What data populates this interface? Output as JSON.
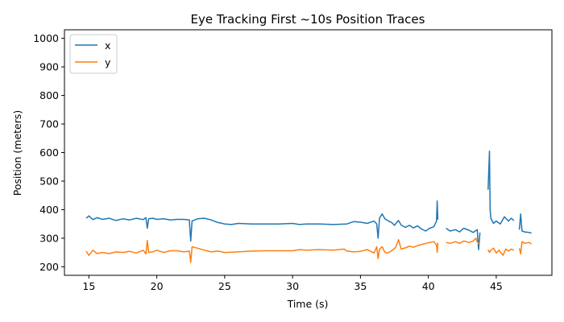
{
  "chart_data": {
    "type": "line",
    "title": "Eye Tracking First ~10s Position Traces",
    "xlabel": "Time (s)",
    "ylabel": "Position (meters)",
    "xlim": [
      13.2,
      49.1
    ],
    "ylim": [
      170,
      1030
    ],
    "xticks": [
      15,
      20,
      25,
      30,
      35,
      40,
      45
    ],
    "yticks": [
      200,
      300,
      400,
      500,
      600,
      700,
      800,
      900,
      1000
    ],
    "grid": false,
    "legend": "top-left",
    "series": [
      {
        "name": "x",
        "color": "#1f77b4",
        "points": [
          [
            14.8,
            370
          ],
          [
            15.0,
            378
          ],
          [
            15.3,
            365
          ],
          [
            15.6,
            372
          ],
          [
            16.0,
            366
          ],
          [
            16.5,
            370
          ],
          [
            17.0,
            362
          ],
          [
            17.5,
            368
          ],
          [
            18.0,
            364
          ],
          [
            18.5,
            370
          ],
          [
            19.0,
            365
          ],
          [
            19.2,
            372
          ],
          [
            19.3,
            335
          ],
          [
            19.4,
            368
          ],
          [
            19.7,
            370
          ],
          [
            20.0,
            366
          ],
          [
            20.5,
            368
          ],
          [
            21.0,
            364
          ],
          [
            21.5,
            366
          ],
          [
            22.0,
            366
          ],
          [
            22.4,
            364
          ],
          [
            22.5,
            290
          ],
          [
            22.6,
            360
          ],
          [
            23.0,
            368
          ],
          [
            23.5,
            370
          ],
          [
            24.0,
            364
          ],
          [
            24.5,
            355
          ],
          [
            25.0,
            350
          ],
          [
            25.5,
            348
          ],
          [
            26.0,
            352
          ],
          [
            27.0,
            350
          ],
          [
            28.0,
            350
          ],
          [
            29.0,
            350
          ],
          [
            30.0,
            352
          ],
          [
            30.5,
            348
          ],
          [
            31.0,
            350
          ],
          [
            32.0,
            350
          ],
          [
            33.0,
            348
          ],
          [
            34.0,
            350
          ],
          [
            34.5,
            358
          ],
          [
            35.0,
            356
          ],
          [
            35.5,
            352
          ],
          [
            36.0,
            360
          ],
          [
            36.2,
            350
          ],
          [
            36.3,
            300
          ],
          [
            36.4,
            370
          ],
          [
            36.6,
            385
          ],
          [
            36.8,
            368
          ],
          [
            37.0,
            362
          ],
          [
            37.3,
            355
          ],
          [
            37.5,
            345
          ],
          [
            37.8,
            362
          ],
          [
            38.0,
            346
          ],
          [
            38.3,
            338
          ],
          [
            38.6,
            345
          ],
          [
            38.9,
            336
          ],
          [
            39.2,
            343
          ],
          [
            39.5,
            332
          ],
          [
            39.8,
            325
          ],
          [
            40.1,
            335
          ],
          [
            40.4,
            340
          ],
          [
            40.6,
            360
          ],
          [
            40.65,
            430
          ],
          [
            40.7,
            365
          ]
        ]
      },
      {
        "name": "x",
        "color": "#1f77b4",
        "points": [
          [
            41.3,
            335
          ],
          [
            41.6,
            325
          ],
          [
            42.0,
            330
          ],
          [
            42.3,
            322
          ],
          [
            42.6,
            335
          ],
          [
            43.0,
            328
          ],
          [
            43.3,
            320
          ],
          [
            43.6,
            330
          ],
          [
            43.7,
            260
          ],
          [
            43.8,
            320
          ]
        ]
      },
      {
        "name": "x",
        "color": "#1f77b4",
        "points": [
          [
            44.4,
            470
          ],
          [
            44.5,
            605
          ],
          [
            44.55,
            400
          ],
          [
            44.6,
            370
          ],
          [
            44.8,
            352
          ],
          [
            45.0,
            360
          ],
          [
            45.3,
            350
          ],
          [
            45.6,
            375
          ],
          [
            45.9,
            360
          ],
          [
            46.1,
            370
          ],
          [
            46.3,
            362
          ]
        ]
      },
      {
        "name": "x",
        "color": "#1f77b4",
        "points": [
          [
            46.7,
            330
          ],
          [
            46.8,
            385
          ],
          [
            46.9,
            325
          ],
          [
            47.1,
            322
          ],
          [
            47.4,
            320
          ],
          [
            47.6,
            318
          ]
        ]
      },
      {
        "name": "y",
        "color": "#ff7f0e",
        "points": [
          [
            14.8,
            255
          ],
          [
            15.0,
            240
          ],
          [
            15.3,
            258
          ],
          [
            15.6,
            246
          ],
          [
            16.0,
            250
          ],
          [
            16.5,
            246
          ],
          [
            17.0,
            252
          ],
          [
            17.5,
            250
          ],
          [
            18.0,
            254
          ],
          [
            18.5,
            248
          ],
          [
            19.0,
            258
          ],
          [
            19.2,
            245
          ],
          [
            19.3,
            292
          ],
          [
            19.4,
            250
          ],
          [
            19.7,
            252
          ],
          [
            20.0,
            258
          ],
          [
            20.5,
            250
          ],
          [
            21.0,
            256
          ],
          [
            21.5,
            256
          ],
          [
            22.0,
            252
          ],
          [
            22.4,
            255
          ],
          [
            22.5,
            215
          ],
          [
            22.6,
            270
          ],
          [
            23.0,
            265
          ],
          [
            23.5,
            258
          ],
          [
            24.0,
            252
          ],
          [
            24.5,
            255
          ],
          [
            25.0,
            250
          ],
          [
            26.0,
            252
          ],
          [
            27.0,
            255
          ],
          [
            28.0,
            256
          ],
          [
            29.0,
            256
          ],
          [
            30.0,
            256
          ],
          [
            30.5,
            260
          ],
          [
            31.0,
            258
          ],
          [
            32.0,
            260
          ],
          [
            33.0,
            258
          ],
          [
            33.8,
            262
          ],
          [
            34.0,
            255
          ],
          [
            34.5,
            252
          ],
          [
            35.0,
            254
          ],
          [
            35.5,
            260
          ],
          [
            36.0,
            248
          ],
          [
            36.2,
            270
          ],
          [
            36.3,
            228
          ],
          [
            36.4,
            262
          ],
          [
            36.6,
            270
          ],
          [
            36.8,
            250
          ],
          [
            37.0,
            248
          ],
          [
            37.3,
            256
          ],
          [
            37.6,
            268
          ],
          [
            37.8,
            295
          ],
          [
            38.0,
            262
          ],
          [
            38.3,
            266
          ],
          [
            38.6,
            272
          ],
          [
            38.9,
            268
          ],
          [
            39.2,
            274
          ],
          [
            39.5,
            278
          ],
          [
            39.8,
            282
          ],
          [
            40.1,
            285
          ],
          [
            40.4,
            288
          ],
          [
            40.6,
            275
          ],
          [
            40.65,
            250
          ],
          [
            40.7,
            285
          ]
        ]
      },
      {
        "name": "y",
        "color": "#ff7f0e",
        "points": [
          [
            41.3,
            285
          ],
          [
            41.6,
            282
          ],
          [
            42.0,
            288
          ],
          [
            42.3,
            282
          ],
          [
            42.6,
            290
          ],
          [
            43.0,
            285
          ],
          [
            43.3,
            290
          ],
          [
            43.5,
            300
          ],
          [
            43.6,
            288
          ],
          [
            43.7,
            280
          ],
          [
            43.8,
            285
          ]
        ]
      },
      {
        "name": "y",
        "color": "#ff7f0e",
        "points": [
          [
            44.4,
            260
          ],
          [
            44.5,
            250
          ],
          [
            44.6,
            258
          ],
          [
            44.8,
            265
          ],
          [
            45.0,
            248
          ],
          [
            45.2,
            258
          ],
          [
            45.5,
            240
          ],
          [
            45.7,
            262
          ],
          [
            45.9,
            255
          ],
          [
            46.1,
            262
          ],
          [
            46.3,
            258
          ]
        ]
      },
      {
        "name": "y",
        "color": "#ff7f0e",
        "points": [
          [
            46.7,
            265
          ],
          [
            46.8,
            245
          ],
          [
            46.9,
            288
          ],
          [
            47.1,
            282
          ],
          [
            47.4,
            285
          ],
          [
            47.6,
            280
          ]
        ]
      }
    ]
  }
}
